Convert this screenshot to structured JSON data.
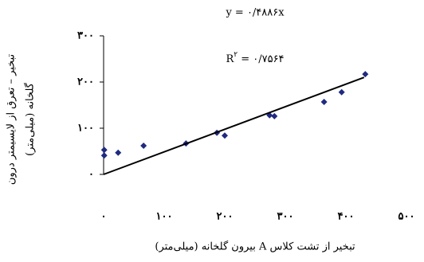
{
  "chart_data": {
    "type": "scatter",
    "x_label": "تبخیر از تشت کلاس A بیرون گلخانه (میلی‌متر)",
    "y_label": [
      "تبخیر – تعرق از لایسیمتر درون",
      "گلخانه (میلی‌متر)"
    ],
    "equation": "y = ۰/۴۸۸۶x",
    "r2": {
      "base": "R",
      "sup": "۲",
      "rest": " = ۰/۷۵۶۴"
    },
    "series": [
      {
        "color": "#1f2a80",
        "x": [
          1,
          1,
          24,
          66,
          136,
          187,
          200,
          274,
          282,
          364,
          393,
          432
        ],
        "values": [
          53,
          41,
          47,
          62,
          67,
          90,
          84,
          128,
          126,
          157,
          178,
          217
        ]
      }
    ],
    "trendline": {
      "slope": 0.4886,
      "x": [
        0,
        430
      ],
      "color": "#000000"
    },
    "xlim": [
      0,
      500
    ],
    "xticks": [
      {
        "value": 0,
        "label": "۰"
      },
      {
        "value": 100,
        "label": "۱۰۰"
      },
      {
        "value": 200,
        "label": "۲۰۰"
      },
      {
        "value": 300,
        "label": "۳۰۰"
      },
      {
        "value": 400,
        "label": "۴۰۰"
      },
      {
        "value": 500,
        "label": "۵۰۰"
      }
    ],
    "ylim": [
      0,
      300
    ],
    "yticks": [
      {
        "value": 0,
        "label": "۰"
      },
      {
        "value": 100,
        "label": "۱۰۰"
      },
      {
        "value": 200,
        "label": "۲۰۰"
      },
      {
        "value": 300,
        "label": "۳۰۰"
      }
    ]
  }
}
